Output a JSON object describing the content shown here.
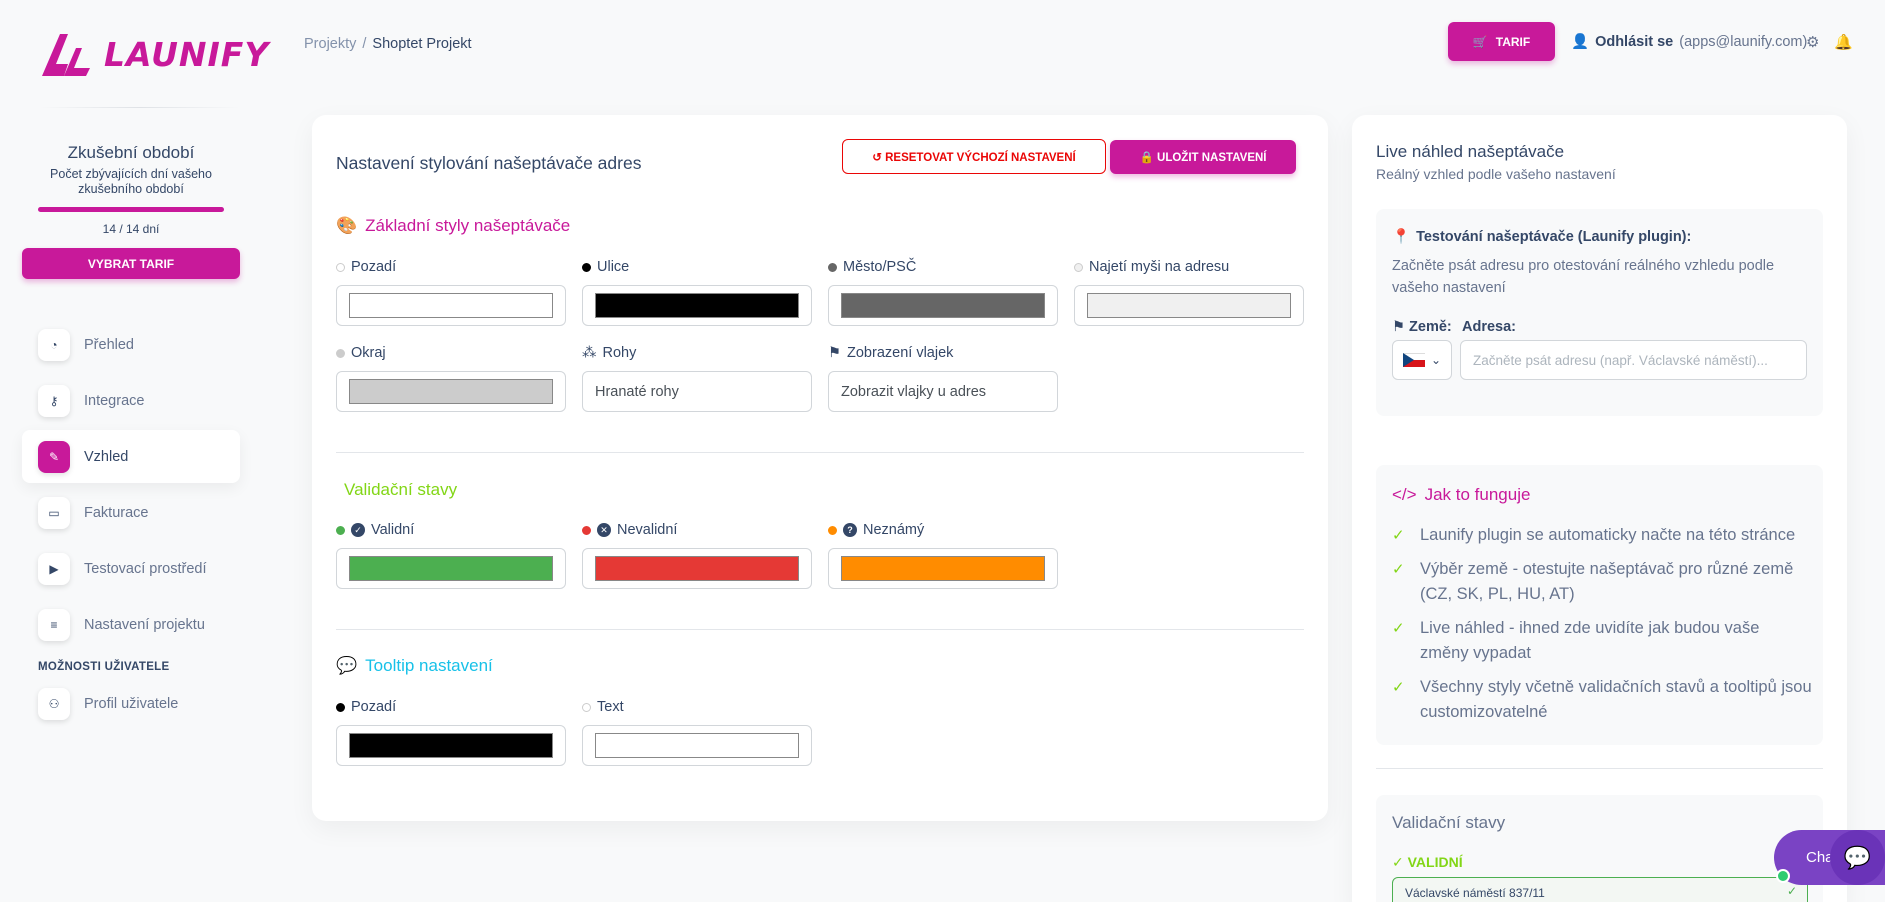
{
  "logo": {
    "text": "LAUNIFY"
  },
  "trial": {
    "title": "Zkušební období",
    "subtitle": "Počet zbývajících dní vašeho zkušebního období",
    "days": "14 / 14 dní",
    "button": "VYBRAT TARIF"
  },
  "nav": {
    "items": [
      {
        "label": "Přehled",
        "icon": "gauge-icon",
        "glyph": "◔"
      },
      {
        "label": "Integrace",
        "icon": "key-icon",
        "glyph": "⚷"
      },
      {
        "label": "Vzhled",
        "icon": "pencil-icon",
        "glyph": "✎"
      },
      {
        "label": "Fakturace",
        "icon": "card-icon",
        "glyph": "▭"
      },
      {
        "label": "Testovací prostředí",
        "icon": "play-icon",
        "glyph": "▶"
      },
      {
        "label": "Nastavení projektu",
        "icon": "sliders-icon",
        "glyph": "≡"
      }
    ],
    "section_label": "MOŽNOSTI UŽIVATELE",
    "user_items": [
      {
        "label": "Profil uživatele",
        "icon": "user-cog-icon",
        "glyph": "⚇"
      }
    ]
  },
  "breadcrumb": {
    "parent": "Projekty",
    "separator": "/",
    "current": "Shoptet Projekt"
  },
  "topbar": {
    "tarif_label": "TARIF",
    "logout_label": "Odhlásit se",
    "email": "(apps@launify.com)"
  },
  "main": {
    "title": "Nastavení stylování našeptávače adres",
    "reset_label": "RESETOVAT VÝCHOZÍ NASTAVENÍ",
    "save_label": "ULOŽIT NASTAVENÍ",
    "basic": {
      "heading": "Základní styly našeptávače",
      "fields": {
        "pozadi": {
          "label": "Pozadí",
          "color": "#ffffff"
        },
        "ulice": {
          "label": "Ulice",
          "color": "#000000"
        },
        "mesto": {
          "label": "Město/PSČ",
          "color": "#666666"
        },
        "hover": {
          "label": "Najetí myši na adresu",
          "color": "#f0f0f0"
        },
        "okraj": {
          "label": "Okraj",
          "color": "#cccccc"
        },
        "rohy": {
          "label": "Rohy",
          "value": "Hranaté rohy"
        },
        "vlajky": {
          "label": "Zobrazení vlajek",
          "value": "Zobrazit vlajky u adres"
        }
      }
    },
    "validation": {
      "heading": "Validační stavy",
      "fields": {
        "valid": {
          "label": "Validní",
          "color": "#4caf50"
        },
        "invalid": {
          "label": "Nevalidní",
          "color": "#e53935"
        },
        "unknown": {
          "label": "Neznámý",
          "color": "#ff8c00"
        }
      }
    },
    "tooltip": {
      "heading": "Tooltip nastavení",
      "fields": {
        "pozadi": {
          "label": "Pozadí",
          "color": "#000000"
        },
        "text": {
          "label": "Text",
          "color": "#ffffff"
        }
      }
    }
  },
  "preview": {
    "title": "Live náhled našeptávače",
    "subtitle": "Reálný vzhled podle vašeho nastavení",
    "test": {
      "heading": "Testování našeptávače (Launify plugin):",
      "description": "Začněte psát adresu pro otestování reálného vzhledu podle vašeho nastavení",
      "country_label": "Země:",
      "address_label": "Adresa:",
      "address_placeholder": "Začněte psát adresu (např. Václavské náměstí)..."
    },
    "how": {
      "heading": "Jak to funguje",
      "items": [
        "Launify plugin se automaticky načte na této stránce",
        "Výběr země - otestujte našeptávač pro různé země (CZ, SK, PL, HU, AT)",
        "Live náhled - ihned zde uvidíte jak budou vaše změny vypadat",
        "Všechny styly včetně validačních stavů a tooltipů jsou customizovatelné"
      ]
    },
    "validation": {
      "heading": "Validační stavy",
      "valid_label": "✓ VALIDNÍ",
      "sample_address": "Václavské náměstí 837/11"
    }
  },
  "chat": {
    "label": "Chat"
  }
}
